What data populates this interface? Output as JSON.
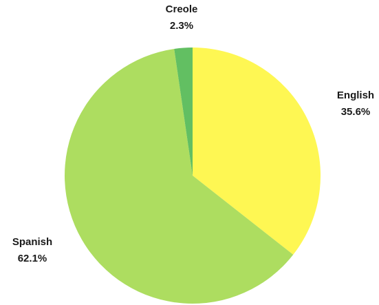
{
  "chart_data": {
    "type": "pie",
    "title": "",
    "slices": [
      {
        "label": "English",
        "value": 35.6,
        "value_label": "35.6%",
        "color": "#fef753"
      },
      {
        "label": "Spanish",
        "value": 62.1,
        "value_label": "62.1%",
        "color": "#addd60"
      },
      {
        "label": "Creole",
        "value": 2.3,
        "value_label": "2.3%",
        "color": "#62bf62"
      }
    ],
    "start_angle": "12 o'clock",
    "direction": "clockwise",
    "legend": "none"
  }
}
